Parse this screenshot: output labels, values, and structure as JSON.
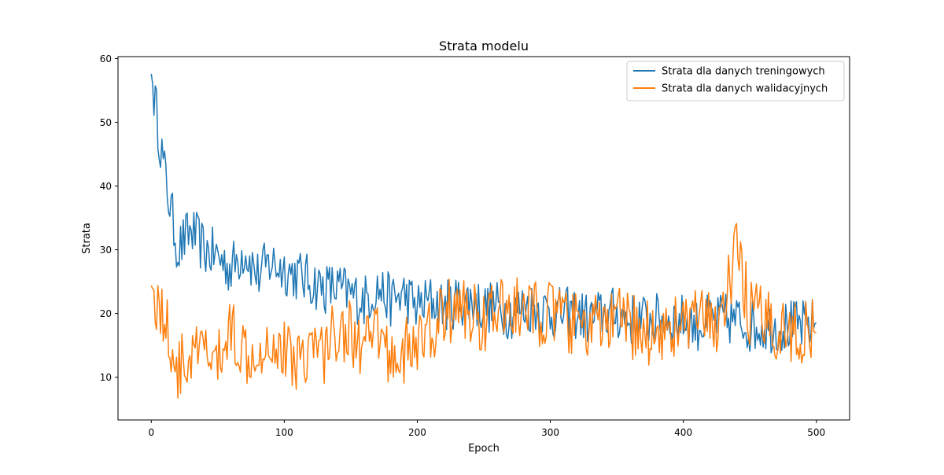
{
  "chart_data": {
    "type": "line",
    "title": "Strata modelu",
    "xlabel": "Epoch",
    "ylabel": "Strata",
    "xlim": [
      -25,
      525
    ],
    "ylim": [
      3.3,
      60.3
    ],
    "xticks": [
      0,
      100,
      200,
      300,
      400,
      500
    ],
    "yticks": [
      10,
      20,
      30,
      40,
      50,
      60
    ],
    "grid": false,
    "legend_position": "top-right",
    "colors": {
      "train": "#1f77b4",
      "val": "#ff7f0e"
    },
    "x_points": [
      0,
      10,
      20,
      30,
      40,
      50,
      60,
      70,
      80,
      90,
      100,
      110,
      120,
      130,
      140,
      150,
      160,
      170,
      180,
      190,
      200,
      210,
      220,
      230,
      240,
      250,
      260,
      270,
      280,
      290,
      300,
      310,
      320,
      330,
      340,
      350,
      360,
      370,
      380,
      390,
      400,
      410,
      420,
      430,
      440,
      450,
      460,
      470,
      480,
      490,
      500
    ],
    "series": [
      {
        "name": "Strata dla danych treningowych",
        "key": "train",
        "values": [
          57.6,
          42.0,
          30.0,
          33.0,
          30.0,
          29.0,
          27.0,
          30.0,
          26.0,
          28.0,
          27.0,
          26.0,
          25.0,
          24.0,
          24.0,
          23.0,
          22.0,
          24.0,
          22.0,
          23.0,
          21.0,
          22.0,
          21.0,
          22.0,
          22.0,
          21.0,
          21.0,
          20.0,
          21.0,
          21.0,
          20.0,
          20.0,
          20.0,
          19.0,
          20.0,
          20.0,
          19.0,
          19.0,
          19.0,
          19.0,
          19.0,
          18.0,
          19.0,
          19.0,
          19.0,
          18.0,
          18.0,
          18.0,
          18.0,
          18.0,
          18.5
        ]
      },
      {
        "name": "Strata dla danych walidacyjnych",
        "key": "val",
        "values": [
          24.4,
          19.0,
          11.0,
          13.0,
          14.0,
          12.0,
          18.0,
          14.0,
          15.0,
          16.0,
          14.0,
          13.0,
          15.0,
          14.0,
          18.0,
          17.0,
          14.0,
          17.0,
          13.0,
          14.0,
          15.0,
          17.0,
          20.0,
          21.0,
          20.0,
          19.0,
          20.0,
          21.0,
          20.0,
          20.0,
          20.0,
          19.0,
          18.0,
          18.0,
          18.0,
          19.0,
          18.0,
          17.0,
          17.0,
          18.0,
          18.0,
          19.0,
          18.0,
          20.0,
          30.0,
          20.0,
          19.0,
          18.0,
          17.0,
          17.0,
          17.0
        ]
      }
    ]
  }
}
